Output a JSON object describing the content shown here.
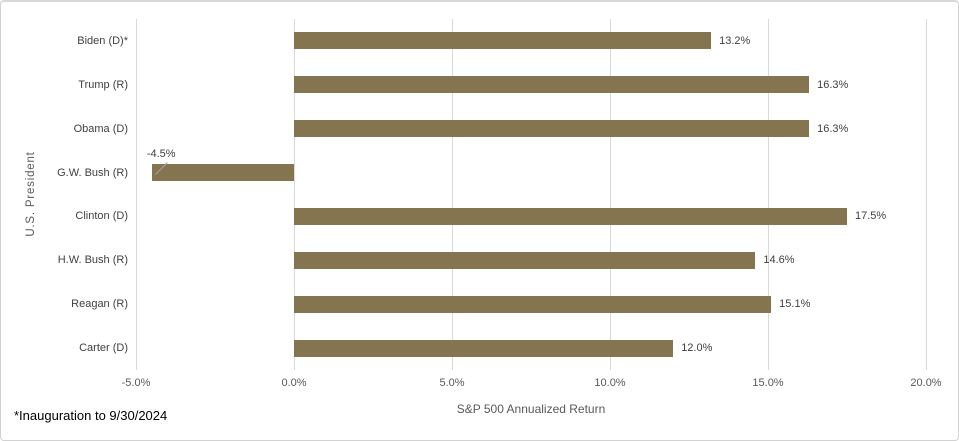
{
  "chart_data": {
    "type": "bar",
    "orientation": "horizontal",
    "xlabel": "S&P 500 Annualized Return",
    "ylabel": "U.S. President",
    "footnote": "*Inauguration to 9/30/2024",
    "categories": [
      "Biden (D)*",
      "Trump (R)",
      "Obama (D)",
      "G.W. Bush (R)",
      "Clinton (D)",
      "H.W. Bush (R)",
      "Reagan (R)",
      "Carter (D)"
    ],
    "values": [
      13.2,
      16.3,
      16.3,
      -4.5,
      17.5,
      14.6,
      15.1,
      12.0
    ],
    "data_labels": [
      "13.2%",
      "16.3%",
      "16.3%",
      "-4.5%",
      "17.5%",
      "14.6%",
      "15.1%",
      "12.0%"
    ],
    "xlim": [
      -5,
      20
    ],
    "xticks": [
      {
        "value": -5,
        "label": "-5.0%"
      },
      {
        "value": 0,
        "label": "0.0%"
      },
      {
        "value": 5,
        "label": "5.0%"
      },
      {
        "value": 10,
        "label": "10.0%"
      },
      {
        "value": 15,
        "label": "15.0%"
      },
      {
        "value": 20,
        "label": "20.0%"
      }
    ],
    "grid": true,
    "legend": "none",
    "negative_label": {
      "index": 3,
      "position": "above-left",
      "leader_line": true
    },
    "colors": {
      "bar": "#857450",
      "gridline": "#d9d9d9",
      "axis_text": "#595959",
      "label_text": "#404040",
      "footnote_text": "#000000",
      "leader_line": "#a6a6a6"
    }
  }
}
